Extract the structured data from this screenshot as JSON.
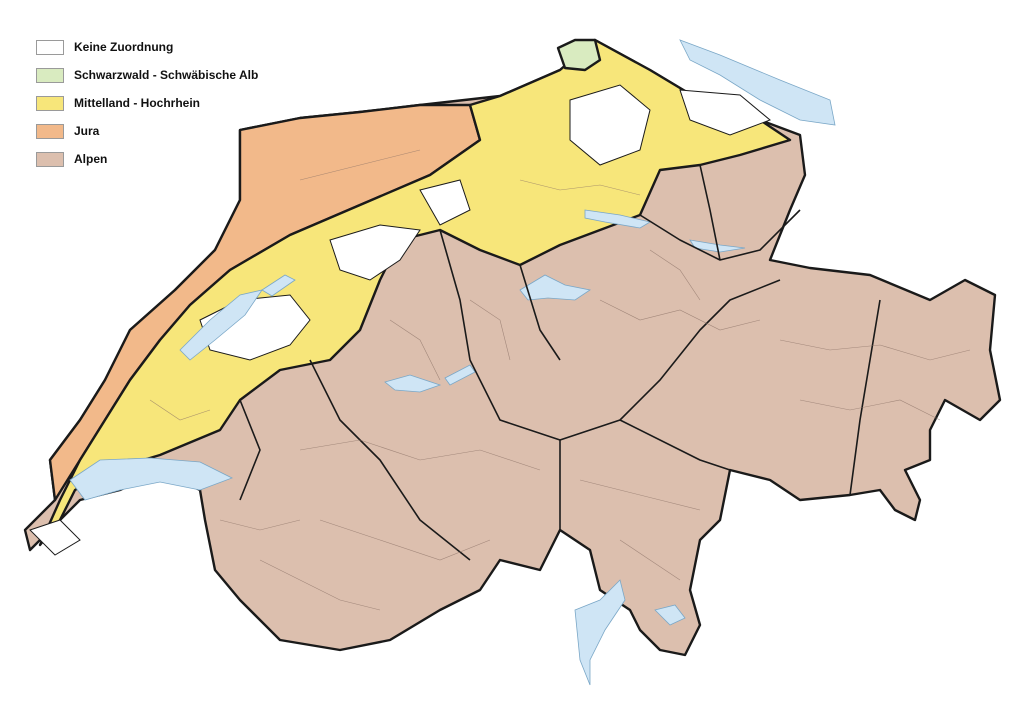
{
  "legend": {
    "items": [
      {
        "label": "Keine Zuordnung",
        "color": "#ffffff"
      },
      {
        "label": "Schwarzwald - Schwäbische Alb",
        "color": "#d9ebc0"
      },
      {
        "label": "Mittelland - Hochrhein",
        "color": "#f7e67a"
      },
      {
        "label": "Jura",
        "color": "#f2b98a"
      },
      {
        "label": "Alpen",
        "color": "#dcbfae"
      }
    ]
  },
  "colors": {
    "lake": "#cfe5f5",
    "border": "#1a1a1a",
    "municipal_line": "#8a7065"
  }
}
